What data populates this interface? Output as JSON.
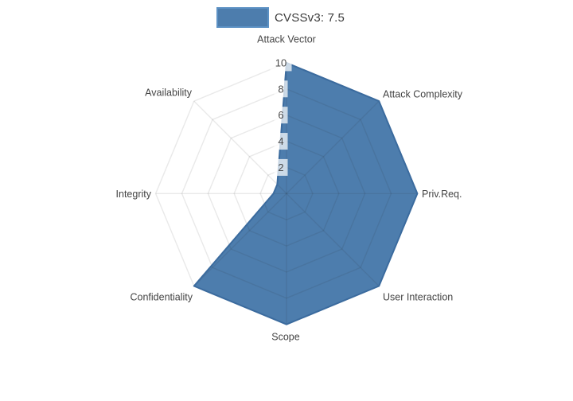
{
  "page": {
    "background": "#ffffff"
  },
  "legend": {
    "label": "CVSSv3: 7.5"
  },
  "chart_data": {
    "type": "radar",
    "title": "",
    "legend_entries": [
      {
        "label": "CVSSv3: 7.5"
      }
    ],
    "legend_position": "top-center",
    "categories": [
      "Attack Vector",
      "Attack Complexity",
      "Priv.Req.",
      "User Interaction",
      "Scope",
      "Confidentiality",
      "Integrity",
      "Availability"
    ],
    "series": [
      {
        "name": "CVSSv3: 7.5",
        "values": [
          10,
          10,
          10,
          10,
          10,
          10,
          1,
          1
        ]
      }
    ],
    "radial_axis": {
      "min": 0,
      "max": 10,
      "tick_labels": [
        2,
        4,
        6,
        8,
        10
      ]
    },
    "start_axis": "top",
    "direction": "clockwise",
    "grid_shape": "linear",
    "grid_on": true,
    "colors": {
      "fill": "#4D7DAD",
      "line": "#3B6B9E",
      "grid": "rgba(40,40,40,0.10)",
      "tick_text": "#4a4a4a",
      "tick_box": "rgba(255,255,255,0.72)",
      "label_text": "#444444"
    }
  }
}
